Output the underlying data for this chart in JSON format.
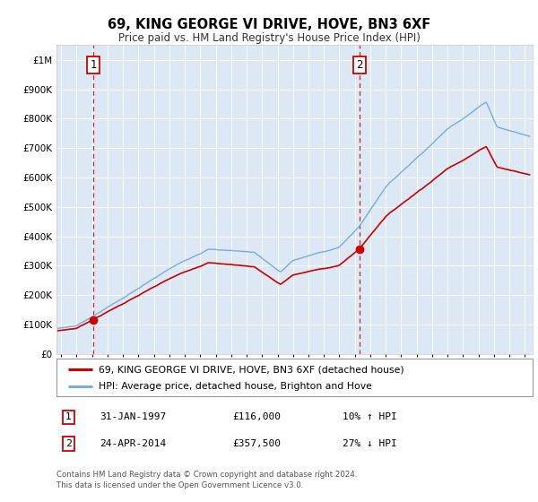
{
  "title": "69, KING GEORGE VI DRIVE, HOVE, BN3 6XF",
  "subtitle": "Price paid vs. HM Land Registry's House Price Index (HPI)",
  "bg_color": "#dce9f5",
  "red_color": "#cc0000",
  "blue_color": "#7aabdb",
  "ylim": [
    0,
    1050000
  ],
  "yticks": [
    0,
    100000,
    200000,
    300000,
    400000,
    500000,
    600000,
    700000,
    800000,
    900000,
    1000000
  ],
  "ytick_labels": [
    "£0",
    "£100K",
    "£200K",
    "£300K",
    "£400K",
    "£500K",
    "£600K",
    "£700K",
    "£800K",
    "£900K",
    "£1M"
  ],
  "xlim_start": 1994.7,
  "xlim_end": 2025.5,
  "sale1_x": 1997.08,
  "sale1_y": 116000,
  "sale2_x": 2014.31,
  "sale2_y": 357500,
  "legend_red": "69, KING GEORGE VI DRIVE, HOVE, BN3 6XF (detached house)",
  "legend_blue": "HPI: Average price, detached house, Brighton and Hove",
  "sale1_date": "31-JAN-1997",
  "sale1_price": "£116,000",
  "sale1_hpi": "10% ↑ HPI",
  "sale2_date": "24-APR-2014",
  "sale2_price": "£357,500",
  "sale2_hpi": "27% ↓ HPI",
  "footer": "Contains HM Land Registry data © Crown copyright and database right 2024.\nThis data is licensed under the Open Government Licence v3.0."
}
